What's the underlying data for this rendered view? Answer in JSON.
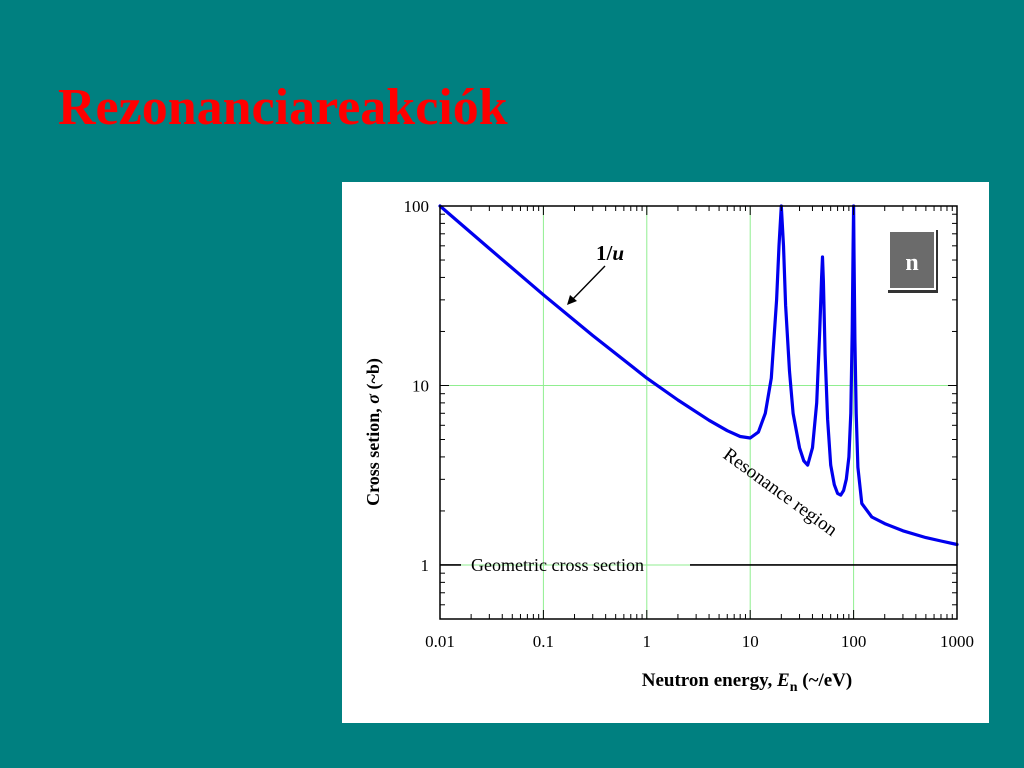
{
  "slide": {
    "title": "Rezonanciareakciók"
  },
  "colors": {
    "background": "#008080",
    "title": "#ff0000",
    "curve": "#0000ee",
    "grid": "#90ee90",
    "badge_fill": "#6b6b6b"
  },
  "chart_data": {
    "type": "line",
    "title": "",
    "xlabel_main": "Neutron energy, ",
    "xlabel_var": "E",
    "xlabel_sub": "n",
    "xlabel_unit": " (~/eV)",
    "ylabel_main": "Cross setion, ",
    "ylabel_var": "σ",
    "ylabel_unit": " (~b)",
    "x_scale": "log",
    "y_scale": "log",
    "xlim": [
      0.01,
      1000
    ],
    "ylim": [
      0.5,
      100
    ],
    "x_ticks": [
      "0.01",
      "0.1",
      "1",
      "10",
      "100",
      "1000"
    ],
    "y_ticks": [
      "1",
      "10",
      "100"
    ],
    "grid": true,
    "series": [
      {
        "x": [
          0.01,
          0.03,
          0.1,
          0.3,
          1,
          2,
          4,
          6,
          8,
          10,
          12,
          14,
          16,
          18,
          19,
          20,
          21,
          22,
          24,
          26,
          30,
          33,
          36,
          40,
          44,
          47,
          49,
          50,
          51,
          53,
          56,
          60,
          65,
          70,
          75,
          80,
          85,
          90,
          94,
          97,
          99,
          100,
          101,
          103,
          106,
          110,
          120,
          150,
          200,
          300,
          500,
          700,
          1000
        ],
        "values": [
          100,
          58,
          32,
          19,
          11,
          8.3,
          6.4,
          5.6,
          5.2,
          5.1,
          5.5,
          7,
          11,
          30,
          60,
          100,
          60,
          28,
          12,
          7,
          4.5,
          3.8,
          3.6,
          4.5,
          8,
          20,
          40,
          52,
          38,
          15,
          6.5,
          3.6,
          2.8,
          2.5,
          2.45,
          2.6,
          3,
          4,
          7,
          20,
          60,
          100,
          55,
          18,
          7,
          3.5,
          2.2,
          1.85,
          1.7,
          1.55,
          1.42,
          1.36,
          1.3
        ]
      }
    ],
    "reference_line": {
      "value": 1,
      "label": "Geometric cross section"
    },
    "annotations": {
      "one_over_u_prefix": "1/",
      "one_over_u_var": "u",
      "resonance_region": "Resonance region"
    },
    "badge": "n"
  }
}
